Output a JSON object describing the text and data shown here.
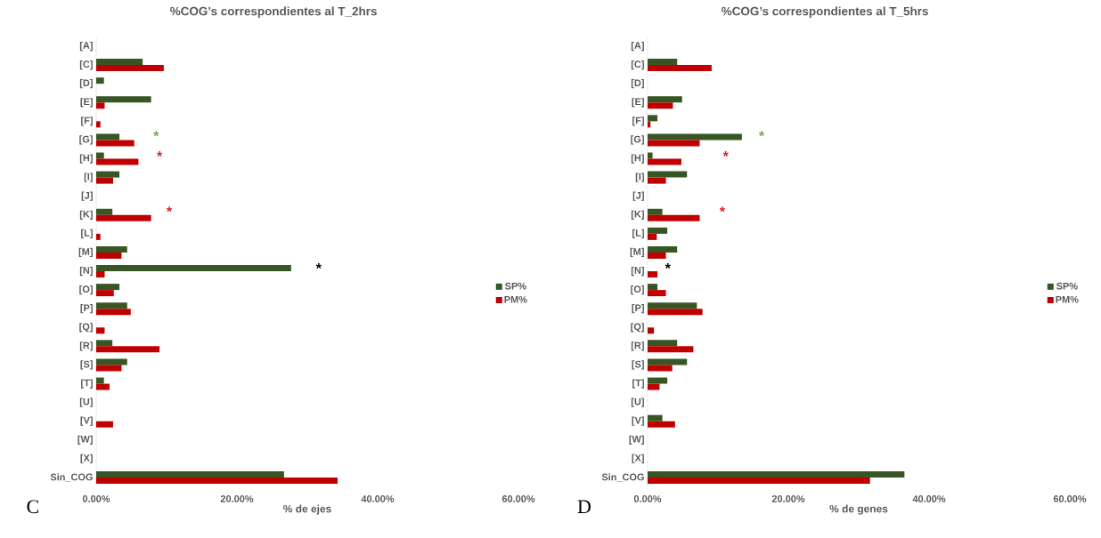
{
  "chart_data": [
    {
      "type": "bar",
      "orientation": "horizontal",
      "title": "%COG’s correspondientes al T_2hrs",
      "xlabel": "% de ejes",
      "categories": [
        "[A]",
        "[C]",
        "[D]",
        "[E]",
        "[F]",
        "[G]",
        "[H]",
        "[I]",
        "[J]",
        "[K]",
        "[L]",
        "[M]",
        "[N]",
        "[O]",
        "[P]",
        "[Q]",
        "[R]",
        "[S]",
        "[T]",
        "[U]",
        "[V]",
        "[W]",
        "[X]",
        "Sin_COG"
      ],
      "series": [
        {
          "name": "SP%",
          "color": "#375623",
          "values": [
            null,
            6.6,
            1.1,
            7.8,
            null,
            3.3,
            1.1,
            3.3,
            null,
            2.3,
            null,
            4.4,
            27.7,
            3.3,
            4.4,
            null,
            2.3,
            4.4,
            1.1,
            null,
            null,
            null,
            null,
            26.7
          ]
        },
        {
          "name": "PM%",
          "color": "#c00000",
          "values": [
            null,
            9.6,
            null,
            1.2,
            0.6,
            5.4,
            6.0,
            2.4,
            null,
            7.8,
            0.6,
            3.6,
            1.2,
            2.5,
            4.9,
            1.2,
            9.0,
            3.6,
            1.9,
            null,
            2.4,
            null,
            null,
            34.3
          ]
        }
      ],
      "xlim": [
        0,
        60
      ],
      "xticks": [
        {
          "value": 0,
          "label": "0.00%"
        },
        {
          "value": 20,
          "label": "20.00%"
        },
        {
          "value": 40,
          "label": "40.00%"
        },
        {
          "value": 60,
          "label": "60.00%"
        }
      ],
      "legend": "right",
      "annotations": [
        "*",
        "*",
        "*",
        "*",
        "C"
      ]
    },
    {
      "type": "bar",
      "orientation": "horizontal",
      "title": "%COG’s correspondientes al T_5hrs",
      "xlabel": "% de genes",
      "categories": [
        "[A]",
        "[C]",
        "[D]",
        "[E]",
        "[F]",
        "[G]",
        "[H]",
        "[I]",
        "[J]",
        "[K]",
        "[L]",
        "[M]",
        "[N]",
        "[O]",
        "[P]",
        "[Q]",
        "[R]",
        "[S]",
        "[T]",
        "[U]",
        "[V]",
        "[W]",
        "[X]",
        "Sin_COG"
      ],
      "series": [
        {
          "name": "SP%",
          "color": "#375623",
          "values": [
            null,
            4.2,
            null,
            4.9,
            1.4,
            13.4,
            0.7,
            5.6,
            null,
            2.1,
            2.8,
            4.2,
            null,
            1.4,
            7.0,
            null,
            4.2,
            5.6,
            2.8,
            null,
            2.1,
            null,
            null,
            36.5
          ]
        },
        {
          "name": "PM%",
          "color": "#c00000",
          "values": [
            null,
            9.1,
            null,
            3.6,
            0.4,
            7.4,
            4.8,
            2.6,
            null,
            7.4,
            1.3,
            2.6,
            1.4,
            2.6,
            7.8,
            0.9,
            6.5,
            3.5,
            1.7,
            null,
            3.9,
            null,
            null,
            31.6
          ]
        }
      ],
      "xlim": [
        0,
        60
      ],
      "xticks": [
        {
          "value": 0,
          "label": "0.00%"
        },
        {
          "value": 20,
          "label": "20.00%"
        },
        {
          "value": 40,
          "label": "40.00%"
        },
        {
          "value": 60,
          "label": "60.00%"
        }
      ],
      "legend": "right",
      "annotations": [
        "*",
        "*",
        "*",
        "*",
        "D"
      ]
    }
  ]
}
